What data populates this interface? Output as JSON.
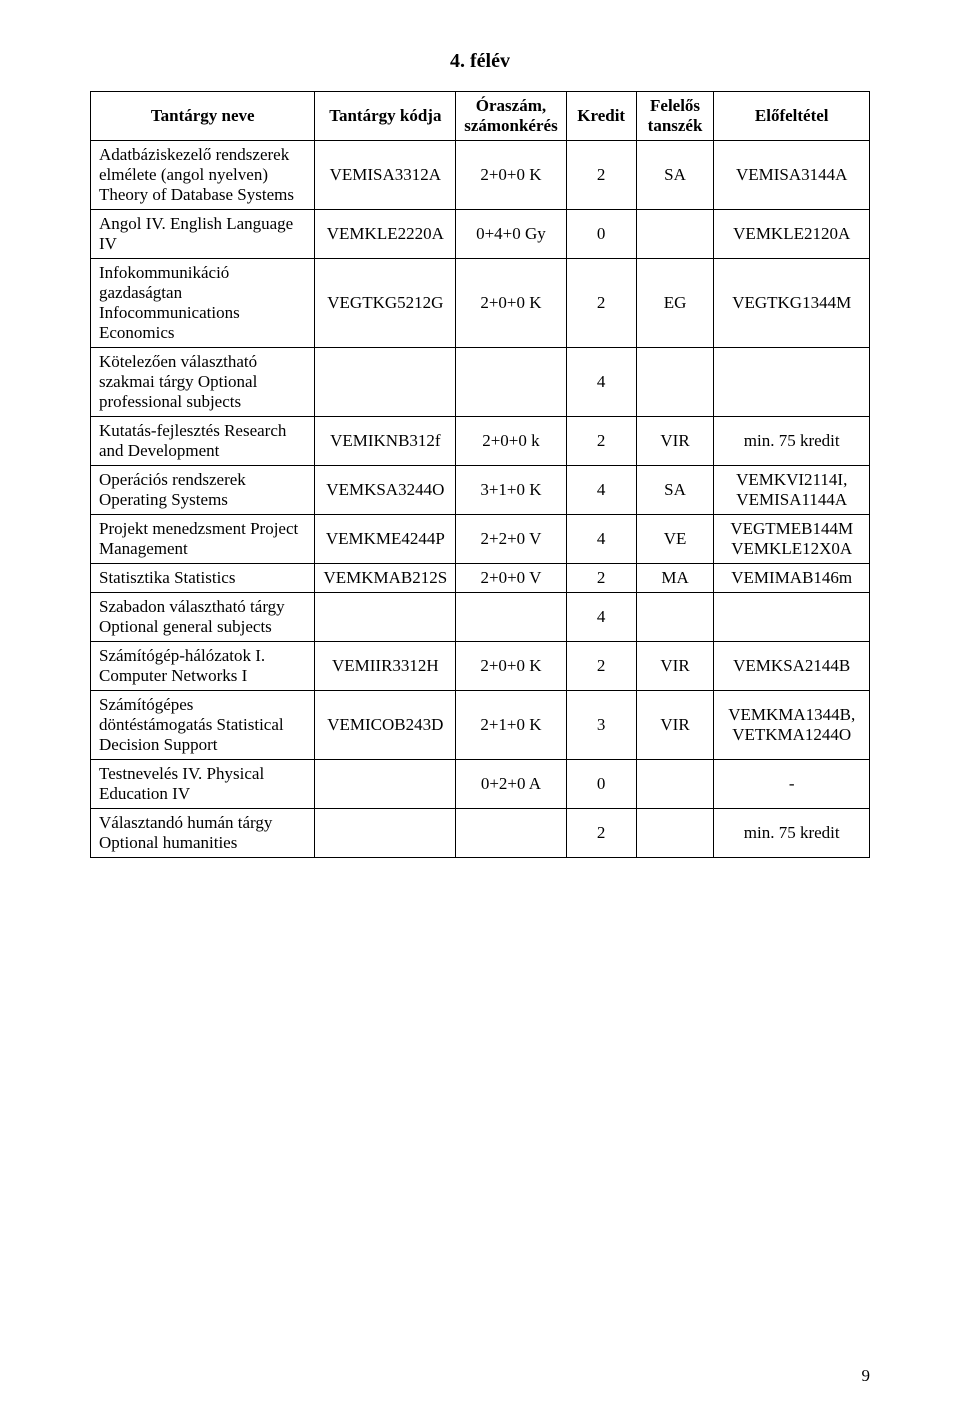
{
  "title": "4. félév",
  "columns": {
    "name": "Tantárgy neve",
    "code": "Tantárgy kódja",
    "hours_l1": "Óraszám,",
    "hours_l2": "számonkérés",
    "credit": "Kredit",
    "dept_l1": "Felelős",
    "dept_l2": "tanszék",
    "prereq": "Előfeltétel"
  },
  "rows": [
    {
      "name": "Adatbáziskezelő rendszerek elmélete (angol nyelven) Theory of Database Systems",
      "code": "VEMISA3312A",
      "hours": "2+0+0 K",
      "credit": "2",
      "dept": "SA",
      "prereq": "VEMISA3144A"
    },
    {
      "name": "Angol IV.\nEnglish Language IV",
      "code": "VEMKLE2220A",
      "hours": "0+4+0 Gy",
      "credit": "0",
      "dept": "",
      "prereq": "VEMKLE2120A"
    },
    {
      "name": "Infokommunikáció gazdaságtan Infocommunications Economics",
      "code": "VEGTKG5212G",
      "hours": "2+0+0 K",
      "credit": "2",
      "dept": "EG",
      "prereq": "VEGTKG1344M"
    },
    {
      "name": "Kötelezően választható szakmai tárgy\nOptional professional subjects",
      "code": "",
      "hours": "",
      "credit": "4",
      "dept": "",
      "prereq": ""
    },
    {
      "name": "Kutatás-fejlesztés\nResearch and Development",
      "code": "VEMIKNB312f",
      "hours": "2+0+0 k",
      "credit": "2",
      "dept": "VIR",
      "prereq": "min. 75 kredit"
    },
    {
      "name": "Operációs rendszerek\nOperating Systems",
      "code": "VEMKSA3244O",
      "hours": "3+1+0 K",
      "credit": "4",
      "dept": "SA",
      "prereq": "VEMKVI2114I, VEMISA1144A"
    },
    {
      "name": "Projekt menedzsment\nProject Management",
      "code": "VEMKME4244P",
      "hours": "2+2+0 V",
      "credit": "4",
      "dept": "VE",
      "prereq": "VEGTMEB144M VEMKLE12X0A"
    },
    {
      "name": "Statisztika\nStatistics",
      "code": "VEMKMAB212S",
      "hours": "2+0+0 V",
      "credit": "2",
      "dept": "MA",
      "prereq": "VEMIMAB146m"
    },
    {
      "name": "Szabadon választható tárgy\nOptional general subjects",
      "code": "",
      "hours": "",
      "credit": "4",
      "dept": "",
      "prereq": ""
    },
    {
      "name": "Számítógép-hálózatok I.\nComputer Networks I",
      "code": "VEMIIR3312H",
      "hours": "2+0+0 K",
      "credit": "2",
      "dept": "VIR",
      "prereq": "VEMKSA2144B"
    },
    {
      "name": "Számítógépes döntéstámogatás\nStatistical Decision Support",
      "code": "VEMICOB243D",
      "hours": "2+1+0 K",
      "credit": "3",
      "dept": "VIR",
      "prereq": "VEMKMA1344B, VETKMA1244O"
    },
    {
      "name": "Testnevelés IV.\nPhysical Education IV",
      "code": "",
      "hours": "0+2+0 A",
      "credit": "0",
      "dept": "",
      "prereq": "-"
    },
    {
      "name": "Választandó humán tárgy\nOptional humanities",
      "code": "",
      "hours": "",
      "credit": "2",
      "dept": "",
      "prereq": "min. 75 kredit"
    }
  ],
  "colwidths": {
    "name": "29%",
    "code": "18%",
    "hours": "14%",
    "credit": "9%",
    "dept": "10%",
    "prereq": "20%"
  },
  "pagenum": "9"
}
